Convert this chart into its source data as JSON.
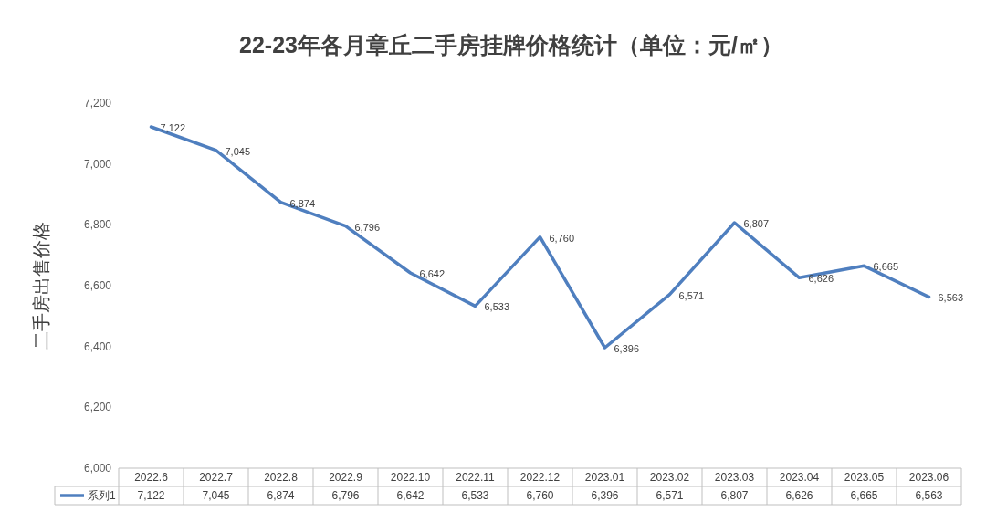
{
  "chart_data": {
    "type": "line",
    "title": "22-23年各月章丘二手房挂牌价格统计（单位：元/㎡）",
    "ylabel": "二手房出售价格",
    "categories": [
      "2022.6",
      "2022.7",
      "2022.8",
      "2022.9",
      "2022.10",
      "2022.11",
      "2022.12",
      "2023.01",
      "2023.02",
      "2023.03",
      "2023.04",
      "2023.05",
      "2023.06"
    ],
    "series": [
      {
        "name": "系列1",
        "color": "#4f7fbf",
        "values": [
          7122,
          7045,
          6874,
          6796,
          6642,
          6533,
          6760,
          6396,
          6571,
          6807,
          6626,
          6665,
          6563
        ],
        "value_labels": [
          "7,122",
          "7,045",
          "6,874",
          "6,796",
          "6,642",
          "6,533",
          "6,760",
          "6,396",
          "6,571",
          "6,807",
          "6,626",
          "6,665",
          "6,563"
        ]
      }
    ],
    "ylim": [
      6000,
      7200
    ],
    "yticks": [
      {
        "value": 6000,
        "label": "6,000"
      },
      {
        "value": 6200,
        "label": "6,200"
      },
      {
        "value": 6400,
        "label": "6,400"
      },
      {
        "value": 6600,
        "label": "6,600"
      },
      {
        "value": 6800,
        "label": "6,800"
      },
      {
        "value": 7000,
        "label": "7,000"
      },
      {
        "value": 7200,
        "label": "7,200"
      }
    ],
    "legend": "bottom"
  }
}
